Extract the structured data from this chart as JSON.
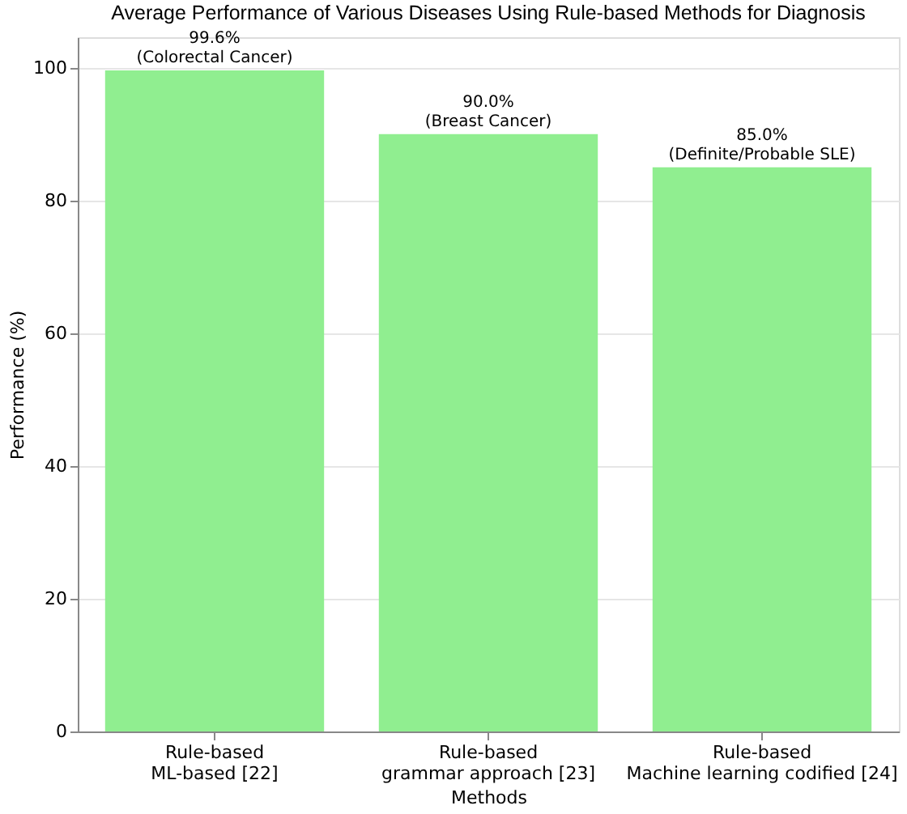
{
  "chart_data": {
    "type": "bar",
    "title": "Average Performance of Various Diseases Using Rule-based Methods for Diagnosis",
    "xlabel": "Methods",
    "ylabel": "Performance (%)",
    "categories": [
      "Rule-based\nML-based [22]",
      "Rule-based\ngrammar approach [23]",
      "Rule-based\nMachine learning codified [24]"
    ],
    "values": [
      99.6,
      90.0,
      85.0
    ],
    "value_labels": [
      "99.6%\n(Colorectal Cancer)",
      "90.0%\n(Breast Cancer)",
      "85.0%\n(Definite/Probable SLE)"
    ],
    "color": "#90ee90",
    "ylim": [
      0,
      104.6
    ],
    "yticks": [
      0,
      20,
      40,
      60,
      80,
      100
    ],
    "grid": "y"
  }
}
